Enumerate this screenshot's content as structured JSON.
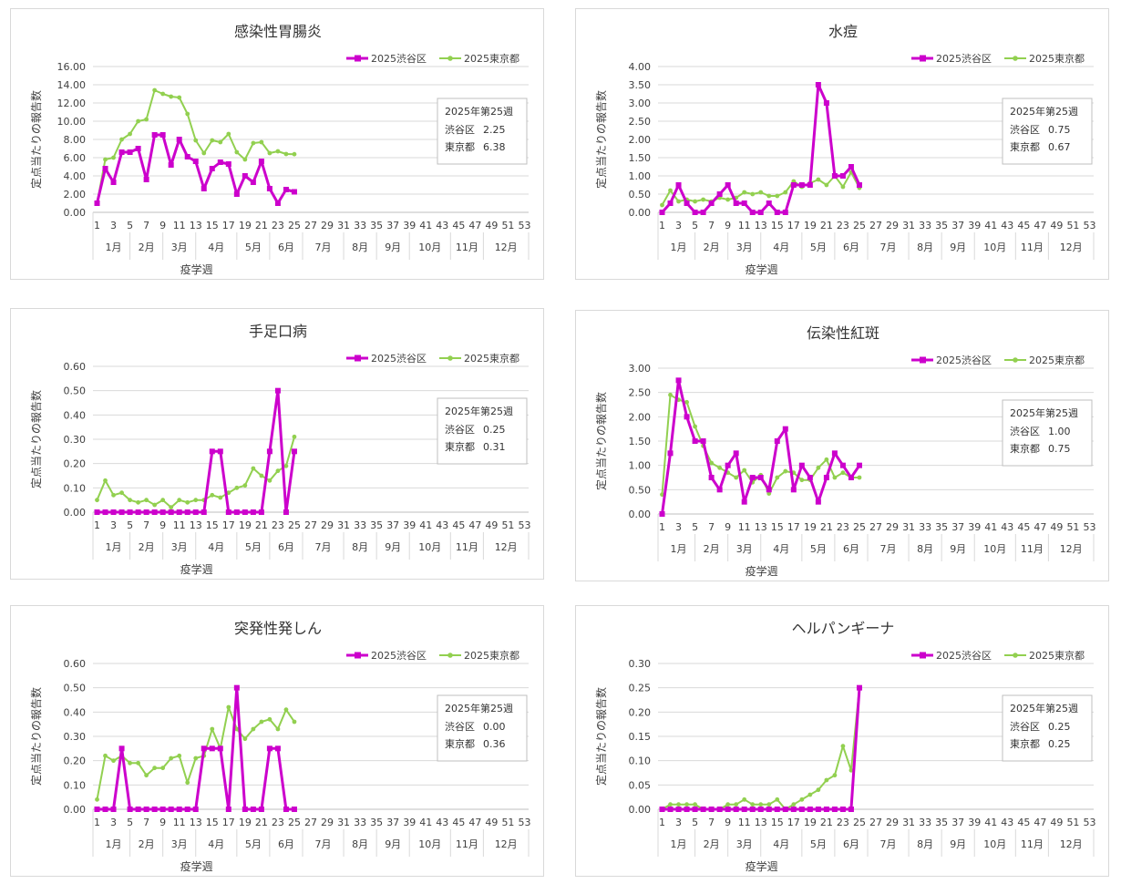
{
  "common": {
    "ylabel": "定点当たりの報告数",
    "xlabel": "疫学週",
    "legend": [
      "2025渋谷区",
      "2025東京都"
    ],
    "months": [
      "1月",
      "2月",
      "3月",
      "4月",
      "5月",
      "6月",
      "7月",
      "8月",
      "9月",
      "10月",
      "11月",
      "12月"
    ],
    "week_ticks": [
      "1",
      "3",
      "5",
      "7",
      "9",
      "11",
      "13",
      "15",
      "17",
      "19",
      "21",
      "23",
      "25",
      "27",
      "29",
      "31",
      "33",
      "35",
      "37",
      "39",
      "41",
      "43",
      "45",
      "47",
      "49",
      "51",
      "53"
    ],
    "box_header": "2025年第25週",
    "box_row1_label": "渋谷区",
    "box_row2_label": "東京都",
    "colors": {
      "shibuya": "#cc00cc",
      "tokyo": "#92d050"
    }
  },
  "chart_data": [
    {
      "type": "line",
      "title": "感染性胃腸炎",
      "ylim": [
        0,
        16
      ],
      "ytick_labels": [
        "0.00",
        "2.00",
        "4.00",
        "6.00",
        "8.00",
        "10.00",
        "12.00",
        "14.00",
        "16.00"
      ],
      "series": [
        {
          "name": "2025渋谷区",
          "values": [
            1.0,
            4.8,
            3.3,
            6.6,
            6.6,
            7.0,
            3.6,
            8.5,
            8.5,
            5.2,
            8.0,
            6.1,
            5.6,
            2.6,
            4.8,
            5.5,
            5.3,
            2.0,
            4.0,
            3.3,
            5.6,
            2.6,
            1.0,
            2.5,
            2.25
          ]
        },
        {
          "name": "2025東京都",
          "values": [
            1.0,
            5.8,
            6.0,
            8.0,
            8.6,
            10.0,
            10.2,
            13.4,
            13.0,
            12.7,
            12.6,
            10.8,
            7.9,
            6.5,
            7.9,
            7.7,
            8.6,
            6.6,
            5.8,
            7.6,
            7.7,
            6.5,
            6.7,
            6.4,
            6.38
          ]
        }
      ],
      "box_values": [
        "2.25",
        "6.38"
      ]
    },
    {
      "type": "line",
      "title": "水痘",
      "ylim": [
        0,
        4
      ],
      "ytick_labels": [
        "0.00",
        "0.50",
        "1.00",
        "1.50",
        "2.00",
        "2.50",
        "3.00",
        "3.50",
        "4.00"
      ],
      "series": [
        {
          "name": "2025渋谷区",
          "values": [
            0.0,
            0.25,
            0.75,
            0.25,
            0.0,
            0.0,
            0.25,
            0.5,
            0.75,
            0.25,
            0.25,
            0.0,
            0.0,
            0.25,
            0.0,
            0.0,
            0.75,
            0.75,
            0.75,
            3.5,
            3.0,
            1.0,
            1.0,
            1.25,
            0.75
          ]
        },
        {
          "name": "2025東京都",
          "values": [
            0.2,
            0.6,
            0.3,
            0.35,
            0.3,
            0.35,
            0.3,
            0.4,
            0.35,
            0.4,
            0.55,
            0.5,
            0.55,
            0.45,
            0.45,
            0.55,
            0.85,
            0.7,
            0.8,
            0.9,
            0.75,
            1.0,
            0.7,
            1.1,
            0.67
          ]
        }
      ],
      "box_values": [
        "0.75",
        "0.67"
      ]
    },
    {
      "type": "line",
      "title": "手足口病",
      "ylim": [
        0,
        0.6
      ],
      "ytick_labels": [
        "0.00",
        "0.10",
        "0.20",
        "0.30",
        "0.40",
        "0.50",
        "0.60"
      ],
      "series": [
        {
          "name": "2025渋谷区",
          "values": [
            0,
            0,
            0,
            0,
            0,
            0,
            0,
            0,
            0,
            0,
            0,
            0,
            0,
            0,
            0.25,
            0.25,
            0,
            0,
            0,
            0,
            0,
            0.25,
            0.5,
            0,
            0.25
          ]
        },
        {
          "name": "2025東京都",
          "values": [
            0.05,
            0.13,
            0.07,
            0.08,
            0.05,
            0.04,
            0.05,
            0.03,
            0.05,
            0.02,
            0.05,
            0.04,
            0.05,
            0.05,
            0.07,
            0.06,
            0.08,
            0.1,
            0.11,
            0.18,
            0.15,
            0.13,
            0.17,
            0.19,
            0.31
          ]
        }
      ],
      "box_values": [
        "0.25",
        "0.31"
      ]
    },
    {
      "type": "line",
      "title": "伝染性紅斑",
      "ylim": [
        0,
        3
      ],
      "ytick_labels": [
        "0.00",
        "0.50",
        "1.00",
        "1.50",
        "2.00",
        "2.50",
        "3.00"
      ],
      "series": [
        {
          "name": "2025渋谷区",
          "values": [
            0.0,
            1.25,
            2.75,
            2.0,
            1.5,
            1.5,
            0.75,
            0.5,
            1.0,
            1.25,
            0.25,
            0.75,
            0.75,
            0.5,
            1.5,
            1.75,
            0.5,
            1.0,
            0.75,
            0.25,
            0.75,
            1.25,
            1.0,
            0.75,
            1.0
          ]
        },
        {
          "name": "2025東京都",
          "values": [
            0.4,
            2.45,
            2.35,
            2.3,
            1.8,
            1.4,
            1.05,
            0.95,
            0.85,
            0.75,
            0.9,
            0.65,
            0.8,
            0.42,
            0.75,
            0.88,
            0.85,
            0.7,
            0.7,
            0.95,
            1.12,
            0.75,
            0.85,
            0.75,
            0.75
          ]
        }
      ],
      "box_values": [
        "1.00",
        "0.75"
      ]
    },
    {
      "type": "line",
      "title": "突発性発しん",
      "ylim": [
        0,
        0.6
      ],
      "ytick_labels": [
        "0.00",
        "0.10",
        "0.20",
        "0.30",
        "0.40",
        "0.50",
        "0.60"
      ],
      "series": [
        {
          "name": "2025渋谷区",
          "values": [
            0,
            0,
            0,
            0.25,
            0,
            0,
            0,
            0,
            0,
            0,
            0,
            0,
            0,
            0.25,
            0.25,
            0.25,
            0,
            0.5,
            0,
            0,
            0,
            0.25,
            0.25,
            0,
            0
          ]
        },
        {
          "name": "2025東京都",
          "values": [
            0.04,
            0.22,
            0.2,
            0.22,
            0.19,
            0.19,
            0.14,
            0.17,
            0.17,
            0.21,
            0.22,
            0.11,
            0.21,
            0.22,
            0.33,
            0.25,
            0.42,
            0.33,
            0.29,
            0.33,
            0.36,
            0.37,
            0.33,
            0.41,
            0.36
          ]
        }
      ],
      "box_values": [
        "0.00",
        "0.36"
      ]
    },
    {
      "type": "line",
      "title": "ヘルパンギーナ",
      "ylim": [
        0,
        0.3
      ],
      "ytick_labels": [
        "0.00",
        "0.05",
        "0.10",
        "0.15",
        "0.20",
        "0.25",
        "0.30"
      ],
      "series": [
        {
          "name": "2025渋谷区",
          "values": [
            0,
            0,
            0,
            0,
            0,
            0,
            0,
            0,
            0,
            0,
            0,
            0,
            0,
            0,
            0,
            0,
            0,
            0,
            0,
            0,
            0,
            0,
            0,
            0,
            0.25
          ]
        },
        {
          "name": "2025東京都",
          "values": [
            0,
            0.01,
            0.01,
            0.01,
            0.01,
            0,
            0,
            0,
            0.01,
            0.01,
            0.02,
            0.01,
            0.01,
            0.01,
            0.02,
            0,
            0.01,
            0.02,
            0.03,
            0.04,
            0.06,
            0.07,
            0.13,
            0.08,
            0.25
          ]
        }
      ],
      "box_values": [
        "0.25",
        "0.25"
      ]
    }
  ]
}
